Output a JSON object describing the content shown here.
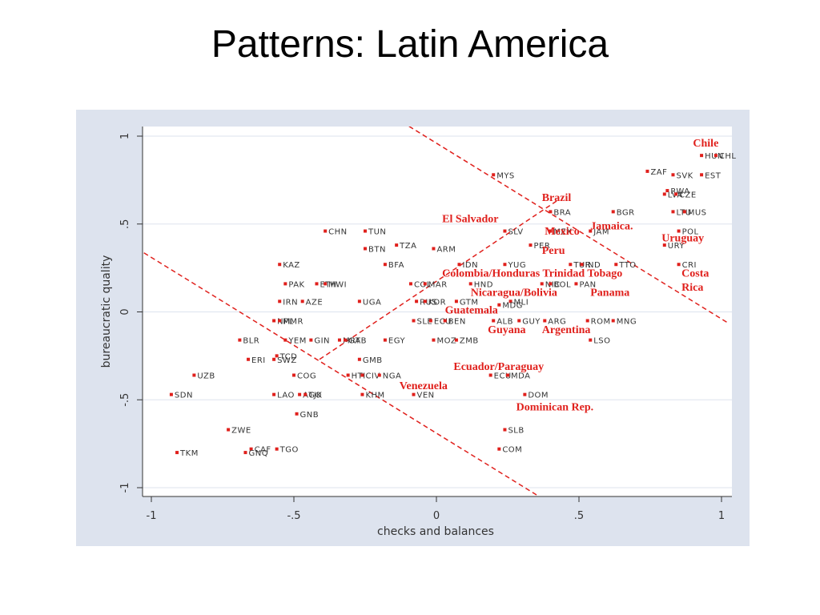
{
  "slide": {
    "title": "Patterns: Latin America"
  },
  "chart_data": {
    "type": "scatter",
    "xlabel": "checks and balances",
    "ylabel": "bureaucratic quality",
    "xlim": [
      -1.02,
      1.04
    ],
    "ylim": [
      -1.05,
      1.05
    ],
    "xticks": [
      -1,
      -0.5,
      0,
      0.5,
      1
    ],
    "xtick_labels": [
      "-1",
      "-.5",
      "0",
      ".5",
      "1"
    ],
    "yticks": [
      -1,
      -0.5,
      0,
      0.5,
      1
    ],
    "ytick_labels": [
      "-1",
      "-.5",
      "0",
      ".5",
      "1"
    ],
    "grid": true,
    "colors": {
      "point": "#e0201c",
      "annotation": "#e0201c",
      "trendline": "#e0201c",
      "background": "#dde3ee",
      "plot": "#ffffff",
      "grid": "#dde3ee"
    },
    "points": [
      {
        "label": "HUN",
        "x": 0.93,
        "y": 0.89
      },
      {
        "label": "CHL",
        "x": 0.98,
        "y": 0.89
      },
      {
        "label": "ZAF",
        "x": 0.74,
        "y": 0.8
      },
      {
        "label": "SVK",
        "x": 0.83,
        "y": 0.78
      },
      {
        "label": "EST",
        "x": 0.93,
        "y": 0.78
      },
      {
        "label": "MYS",
        "x": 0.2,
        "y": 0.78
      },
      {
        "label": "RWA",
        "x": 0.81,
        "y": 0.69
      },
      {
        "label": "LVA",
        "x": 0.8,
        "y": 0.67
      },
      {
        "label": "CZE",
        "x": 0.84,
        "y": 0.67
      },
      {
        "label": "BRA",
        "x": 0.4,
        "y": 0.57
      },
      {
        "label": "BGR",
        "x": 0.62,
        "y": 0.57
      },
      {
        "label": "LTU",
        "x": 0.83,
        "y": 0.57
      },
      {
        "label": "MUS",
        "x": 0.87,
        "y": 0.57
      },
      {
        "label": "CHN",
        "x": -0.39,
        "y": 0.46
      },
      {
        "label": "TUN",
        "x": -0.25,
        "y": 0.46
      },
      {
        "label": "SLV",
        "x": 0.24,
        "y": 0.46
      },
      {
        "label": "MEX",
        "x": 0.4,
        "y": 0.46
      },
      {
        "label": "JAM",
        "x": 0.54,
        "y": 0.46
      },
      {
        "label": "POL",
        "x": 0.85,
        "y": 0.46
      },
      {
        "label": "TZA",
        "x": -0.14,
        "y": 0.38
      },
      {
        "label": "PER",
        "x": 0.33,
        "y": 0.38
      },
      {
        "label": "URY",
        "x": 0.8,
        "y": 0.38
      },
      {
        "label": "BTN",
        "x": -0.25,
        "y": 0.36
      },
      {
        "label": "ARM",
        "x": -0.01,
        "y": 0.36
      },
      {
        "label": "KAZ",
        "x": -0.55,
        "y": 0.27
      },
      {
        "label": "BFA",
        "x": -0.18,
        "y": 0.27
      },
      {
        "label": "IDN",
        "x": 0.08,
        "y": 0.27
      },
      {
        "label": "YUG",
        "x": 0.24,
        "y": 0.27
      },
      {
        "label": "TUR",
        "x": 0.47,
        "y": 0.27
      },
      {
        "label": "IND",
        "x": 0.51,
        "y": 0.27
      },
      {
        "label": "TTO",
        "x": 0.63,
        "y": 0.27
      },
      {
        "label": "CRI",
        "x": 0.85,
        "y": 0.27
      },
      {
        "label": "PAK",
        "x": -0.53,
        "y": 0.16
      },
      {
        "label": "ETH",
        "x": -0.42,
        "y": 0.16
      },
      {
        "label": "MWI",
        "x": -0.39,
        "y": 0.16
      },
      {
        "label": "COL",
        "x": -0.09,
        "y": 0.16
      },
      {
        "label": "MAR",
        "x": -0.04,
        "y": 0.16
      },
      {
        "label": "HND",
        "x": 0.12,
        "y": 0.16
      },
      {
        "label": "NIC",
        "x": 0.37,
        "y": 0.16
      },
      {
        "label": "BOL",
        "x": 0.4,
        "y": 0.16
      },
      {
        "label": "PAN",
        "x": 0.49,
        "y": 0.16
      },
      {
        "label": "IRN",
        "x": -0.55,
        "y": 0.06
      },
      {
        "label": "AZE",
        "x": -0.47,
        "y": 0.06
      },
      {
        "label": "UGA",
        "x": -0.27,
        "y": 0.06
      },
      {
        "label": "RUS",
        "x": -0.07,
        "y": 0.06
      },
      {
        "label": "KOR",
        "x": -0.04,
        "y": 0.06
      },
      {
        "label": "GTM",
        "x": 0.07,
        "y": 0.06
      },
      {
        "label": "MLI",
        "x": 0.26,
        "y": 0.06
      },
      {
        "label": "MDG",
        "x": 0.22,
        "y": 0.04
      },
      {
        "label": "NPL",
        "x": -0.57,
        "y": -0.05
      },
      {
        "label": "MMR",
        "x": -0.55,
        "y": -0.05
      },
      {
        "label": "SLE",
        "x": -0.08,
        "y": -0.05
      },
      {
        "label": "ECU",
        "x": -0.02,
        "y": -0.05
      },
      {
        "label": "BEN",
        "x": 0.03,
        "y": -0.05
      },
      {
        "label": "ALB",
        "x": 0.2,
        "y": -0.05
      },
      {
        "label": "GUY",
        "x": 0.29,
        "y": -0.05
      },
      {
        "label": "ARG",
        "x": 0.38,
        "y": -0.05
      },
      {
        "label": "ROM",
        "x": 0.53,
        "y": -0.05
      },
      {
        "label": "MNG",
        "x": 0.62,
        "y": -0.05
      },
      {
        "label": "BLR",
        "x": -0.69,
        "y": -0.16
      },
      {
        "label": "YEM",
        "x": -0.53,
        "y": -0.16
      },
      {
        "label": "GIN",
        "x": -0.44,
        "y": -0.16
      },
      {
        "label": "MRT",
        "x": -0.34,
        "y": -0.16
      },
      {
        "label": "GAB",
        "x": -0.32,
        "y": -0.16
      },
      {
        "label": "EGY",
        "x": -0.18,
        "y": -0.16
      },
      {
        "label": "MOZ",
        "x": -0.01,
        "y": -0.16
      },
      {
        "label": "ZMB",
        "x": 0.07,
        "y": -0.16
      },
      {
        "label": "LSO",
        "x": 0.54,
        "y": -0.16
      },
      {
        "label": "ERI",
        "x": -0.66,
        "y": -0.27
      },
      {
        "label": "SWZ",
        "x": -0.57,
        "y": -0.27
      },
      {
        "label": "TCD",
        "x": -0.56,
        "y": -0.25
      },
      {
        "label": "GMB",
        "x": -0.27,
        "y": -0.27
      },
      {
        "label": "UZB",
        "x": -0.85,
        "y": -0.36
      },
      {
        "label": "COG",
        "x": -0.5,
        "y": -0.36
      },
      {
        "label": "HTI",
        "x": -0.31,
        "y": -0.36
      },
      {
        "label": "CIV",
        "x": -0.26,
        "y": -0.36
      },
      {
        "label": "NGA",
        "x": -0.2,
        "y": -0.36
      },
      {
        "label": "ECU",
        "x": 0.19,
        "y": -0.36
      },
      {
        "label": "MDA",
        "x": 0.25,
        "y": -0.36
      },
      {
        "label": "SDN",
        "x": -0.93,
        "y": -0.47
      },
      {
        "label": "LAO",
        "x": -0.57,
        "y": -0.47
      },
      {
        "label": "AGO",
        "x": -0.48,
        "y": -0.47
      },
      {
        "label": "TJK",
        "x": -0.46,
        "y": -0.47
      },
      {
        "label": "KHM",
        "x": -0.26,
        "y": -0.47
      },
      {
        "label": "VEN",
        "x": -0.08,
        "y": -0.47
      },
      {
        "label": "DOM",
        "x": 0.31,
        "y": -0.47
      },
      {
        "label": "GNB",
        "x": -0.49,
        "y": -0.58
      },
      {
        "label": "ZWE",
        "x": -0.73,
        "y": -0.67
      },
      {
        "label": "SLB",
        "x": 0.24,
        "y": -0.67
      },
      {
        "label": "CAF",
        "x": -0.65,
        "y": -0.78
      },
      {
        "label": "TGO",
        "x": -0.56,
        "y": -0.78
      },
      {
        "label": "COM",
        "x": 0.22,
        "y": -0.78
      },
      {
        "label": "TKM",
        "x": -0.91,
        "y": -0.8
      },
      {
        "label": "GNQ",
        "x": -0.67,
        "y": -0.8
      }
    ],
    "annotations": [
      {
        "text": "Chile",
        "x": 0.9,
        "y": 0.94
      },
      {
        "text": "Brazil",
        "x": 0.37,
        "y": 0.63
      },
      {
        "text": "El Salvador",
        "x": 0.02,
        "y": 0.51
      },
      {
        "text": "Mexico",
        "x": 0.38,
        "y": 0.44
      },
      {
        "text": "Jamaica.",
        "x": 0.54,
        "y": 0.47
      },
      {
        "text": "Uruguay",
        "x": 0.79,
        "y": 0.4
      },
      {
        "text": "Peru",
        "x": 0.37,
        "y": 0.33
      },
      {
        "text": "Colombia/Honduras Trinidad Tobago",
        "x": 0.02,
        "y": 0.2
      },
      {
        "text": "Costa",
        "x": 0.86,
        "y": 0.2
      },
      {
        "text": "Nicaragua/Bolivia",
        "x": 0.12,
        "y": 0.09
      },
      {
        "text": "Panama",
        "x": 0.54,
        "y": 0.09
      },
      {
        "text": "Rica",
        "x": 0.86,
        "y": 0.12
      },
      {
        "text": "Guatemala",
        "x": 0.03,
        "y": -0.01
      },
      {
        "text": "Guyana",
        "x": 0.18,
        "y": -0.12
      },
      {
        "text": "Argentina",
        "x": 0.37,
        "y": -0.12
      },
      {
        "text": "Ecuador/Paraguay",
        "x": 0.06,
        "y": -0.33
      },
      {
        "text": "Venezuela",
        "x": -0.13,
        "y": -0.44
      },
      {
        "text": "Dominican Rep.",
        "x": 0.28,
        "y": -0.56
      }
    ],
    "lines": [
      {
        "x": [
          -1.05,
          0.37
        ],
        "y": [
          0.36,
          -1.06
        ]
      },
      {
        "x": [
          -0.12,
          1.02
        ],
        "y": [
          1.08,
          -0.06
        ]
      },
      {
        "x": [
          -0.41,
          0.43
        ],
        "y": [
          -0.27,
          0.64
        ]
      }
    ]
  }
}
